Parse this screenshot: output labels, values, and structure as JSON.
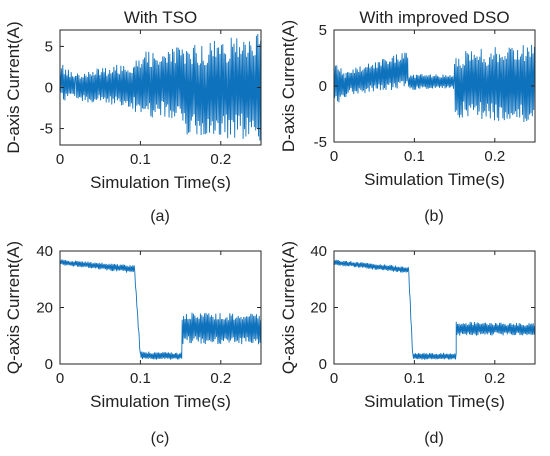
{
  "figure": {
    "captions": [
      "(a)",
      "(b)",
      "(c)",
      "(d)"
    ]
  },
  "colors": {
    "series": "#0f72bd",
    "axes": "#262626"
  },
  "chart_data": [
    {
      "id": "a",
      "type": "line",
      "title": "With TSO",
      "xlabel": "Simulation Time(s)",
      "ylabel": "D-axis Current(A)",
      "xlim": [
        0,
        0.25
      ],
      "ylim": [
        -7,
        7
      ],
      "xticks": [
        0,
        0.1,
        0.2
      ],
      "xtick_labels": [
        "0",
        "0.1",
        "0.2"
      ],
      "yticks": [
        -5,
        0,
        5
      ],
      "ytick_labels": [
        "-5",
        "0",
        "5"
      ],
      "series": [
        {
          "style": "oscillating-band",
          "segments": [
            {
              "x0": 0.0,
              "x1": 0.02,
              "y_upper": [
                3.0,
                1.6
              ],
              "y_lower": [
                -1.8,
                -1.2
              ]
            },
            {
              "x0": 0.02,
              "x1": 0.093,
              "y_upper": [
                1.8,
                3.2
              ],
              "y_lower": [
                -1.6,
                -2.6
              ]
            },
            {
              "x0": 0.093,
              "x1": 0.152,
              "y_upper": [
                4.2,
                5.0
              ],
              "y_lower": [
                -3.6,
                -3.8
              ]
            },
            {
              "x0": 0.152,
              "x1": 0.25,
              "y_upper": [
                5.0,
                6.8
              ],
              "y_lower": [
                -5.8,
                -6.5
              ]
            }
          ]
        }
      ]
    },
    {
      "id": "b",
      "type": "line",
      "title": "With improved DSO",
      "xlabel": "Simulation Time(s)",
      "ylabel": "D-axis Current(A)",
      "xlim": [
        0,
        0.25
      ],
      "ylim": [
        -5,
        5
      ],
      "xticks": [
        0,
        0.1,
        0.2
      ],
      "xtick_labels": [
        "0",
        "0.1",
        "0.2"
      ],
      "yticks": [
        -5,
        0,
        5
      ],
      "ytick_labels": [
        "-5",
        "0",
        "5"
      ],
      "series": [
        {
          "style": "oscillating-band",
          "segments": [
            {
              "x0": 0.0,
              "x1": 0.015,
              "y_upper": [
                2.5,
                1.0
              ],
              "y_lower": [
                -2.0,
                -1.0
              ]
            },
            {
              "x0": 0.015,
              "x1": 0.092,
              "y_upper": [
                1.5,
                3.2
              ],
              "y_lower": [
                -0.8,
                -0.3
              ]
            },
            {
              "x0": 0.092,
              "x1": 0.15,
              "y_upper": [
                1.1,
                1.0
              ],
              "y_lower": [
                -0.4,
                -0.3
              ]
            },
            {
              "x0": 0.15,
              "x1": 0.25,
              "y_upper": [
                3.0,
                4.0
              ],
              "y_lower": [
                -2.8,
                -3.5
              ]
            }
          ]
        }
      ]
    },
    {
      "id": "c",
      "type": "line",
      "title": "",
      "xlabel": "Simulation Time(s)",
      "ylabel": "Q-axis Current(A)",
      "xlim": [
        0,
        0.25
      ],
      "ylim": [
        0,
        40
      ],
      "xticks": [
        0,
        0.1,
        0.2
      ],
      "xtick_labels": [
        "0",
        "0.1",
        "0.2"
      ],
      "yticks": [
        0,
        20,
        40
      ],
      "ytick_labels": [
        "0",
        "20",
        "40"
      ],
      "series": [
        {
          "style": "oscillating-band",
          "segments": [
            {
              "x0": 0.0,
              "x1": 0.093,
              "y_upper": [
                37.0,
                35.0
              ],
              "y_lower": [
                35.0,
                32.0
              ]
            },
            {
              "x0": 0.093,
              "x1": 0.1,
              "y_upper": [
                33.0,
                4.0
              ],
              "y_lower": [
                31.0,
                1.5
              ]
            },
            {
              "x0": 0.1,
              "x1": 0.152,
              "y_upper": [
                4.5,
                4.0
              ],
              "y_lower": [
                1.5,
                1.5
              ]
            },
            {
              "x0": 0.152,
              "x1": 0.25,
              "y_upper": [
                18.5,
                18.0
              ],
              "y_lower": [
                7.0,
                7.0
              ]
            }
          ]
        }
      ]
    },
    {
      "id": "d",
      "type": "line",
      "title": "",
      "xlabel": "Simulation Time(s)",
      "ylabel": "Q-axis Current(A)",
      "xlim": [
        0,
        0.25
      ],
      "ylim": [
        0,
        40
      ],
      "xticks": [
        0,
        0.1,
        0.2
      ],
      "xtick_labels": [
        "0",
        "0.1",
        "0.2"
      ],
      "yticks": [
        0,
        20,
        40
      ],
      "ytick_labels": [
        "0",
        "20",
        "40"
      ],
      "series": [
        {
          "style": "oscillating-band",
          "segments": [
            {
              "x0": 0.0,
              "x1": 0.093,
              "y_upper": [
                37.0,
                34.5
              ],
              "y_lower": [
                35.0,
                32.0
              ]
            },
            {
              "x0": 0.093,
              "x1": 0.098,
              "y_upper": [
                33.0,
                4.0
              ],
              "y_lower": [
                31.0,
                1.5
              ]
            },
            {
              "x0": 0.098,
              "x1": 0.152,
              "y_upper": [
                4.0,
                4.0
              ],
              "y_lower": [
                1.5,
                1.5
              ]
            },
            {
              "x0": 0.152,
              "x1": 0.25,
              "y_upper": [
                15.0,
                14.5
              ],
              "y_lower": [
                10.0,
                10.0
              ]
            }
          ]
        }
      ]
    }
  ]
}
